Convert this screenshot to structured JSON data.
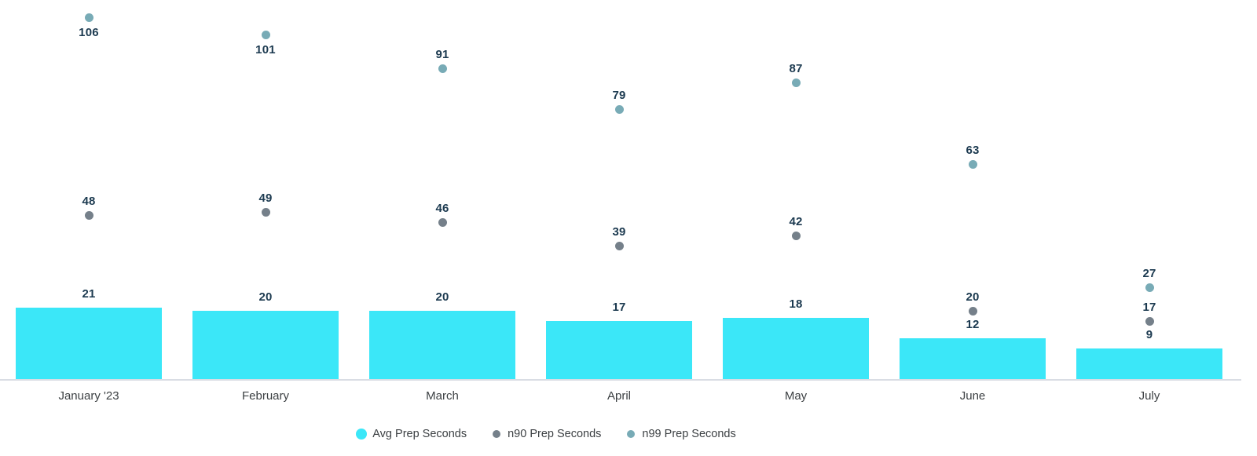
{
  "chart_data": {
    "type": "bar",
    "title": "",
    "xlabel": "",
    "ylabel": "",
    "grid": "off",
    "legend_position": "bottom",
    "ylim": [
      0,
      111
    ],
    "categories": [
      "January '23",
      "February",
      "March",
      "April",
      "May",
      "June",
      "July"
    ],
    "series": [
      {
        "name": "Avg Prep Seconds",
        "render": "bar",
        "color": "#3be7f8",
        "values": [
          21,
          20,
          20,
          17,
          18,
          12,
          9
        ]
      },
      {
        "name": "n90 Prep Seconds",
        "render": "point",
        "color": "#75808a",
        "values": [
          48,
          49,
          46,
          39,
          42,
          20,
          17
        ]
      },
      {
        "name": "n99 Prep Seconds",
        "render": "point",
        "color": "#78abb6",
        "values": [
          106,
          101,
          91,
          79,
          87,
          63,
          27
        ]
      }
    ],
    "value_labels_visible": true
  },
  "colors": {
    "value_label": "#1c3a50",
    "axis_label": "#3c4043",
    "legend_text": "#3c4043",
    "axis_line": "#d9dde4",
    "background": "#ffffff"
  },
  "legend": {
    "items": [
      {
        "label": "Avg Prep Seconds",
        "marker": "cyan-circle-icon"
      },
      {
        "label": "n90 Prep Seconds",
        "marker": "gray-dot-icon"
      },
      {
        "label": "n99 Prep Seconds",
        "marker": "teal-dot-icon"
      }
    ]
  }
}
